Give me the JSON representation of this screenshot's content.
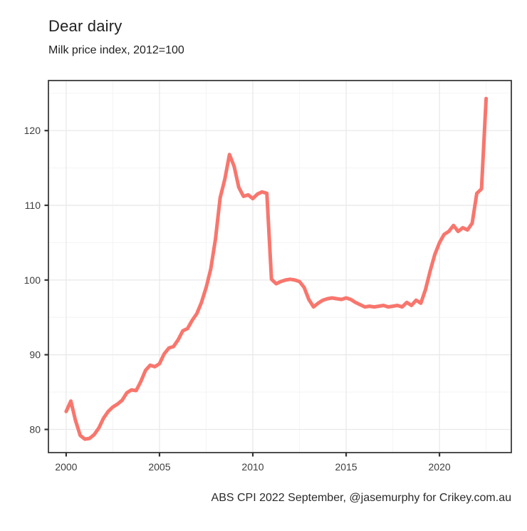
{
  "title": "Dear dairy",
  "subtitle": "Milk price index, 2012=100",
  "caption": "ABS CPI 2022 September, @jasemurphy for Crikey.com.au",
  "colors": {
    "line": "#F8766D",
    "panel_border": "#2f2f2f",
    "grid_major": "#e9e9e9",
    "grid_minor": "#f5f5f5",
    "tick_mark": "#333333",
    "tick_label": "#3d3d3d",
    "background": "#ffffff"
  },
  "chart_data": {
    "type": "line",
    "title": "Dear dairy",
    "subtitle": "Milk price index, 2012=100",
    "caption": "ABS CPI 2022 September, @jasemurphy for Crikey.com.au",
    "series_name": "Milk price index (2012=100)",
    "frequency": "quarterly",
    "xlabel": "",
    "ylabel": "",
    "xlim": [
      1999.05,
      2023.85
    ],
    "ylim": [
      76.9,
      126.7
    ],
    "x_ticks": [
      2000,
      2005,
      2010,
      2015,
      2020
    ],
    "y_ticks": [
      80,
      90,
      100,
      110,
      120
    ],
    "x_minor_ticks": [
      2002.5,
      2007.5,
      2012.5,
      2017.5,
      2022.5
    ],
    "y_minor_ticks": [
      85,
      95,
      105,
      115,
      125
    ],
    "grid": true,
    "legend_position": "none",
    "x": [
      2000.0,
      2000.25,
      2000.5,
      2000.75,
      2001.0,
      2001.25,
      2001.5,
      2001.75,
      2002.0,
      2002.25,
      2002.5,
      2002.75,
      2003.0,
      2003.25,
      2003.5,
      2003.75,
      2004.0,
      2004.25,
      2004.5,
      2004.75,
      2005.0,
      2005.25,
      2005.5,
      2005.75,
      2006.0,
      2006.25,
      2006.5,
      2006.75,
      2007.0,
      2007.25,
      2007.5,
      2007.75,
      2008.0,
      2008.25,
      2008.5,
      2008.75,
      2009.0,
      2009.25,
      2009.5,
      2009.75,
      2010.0,
      2010.25,
      2010.5,
      2010.75,
      2011.0,
      2011.25,
      2011.5,
      2011.75,
      2012.0,
      2012.25,
      2012.5,
      2012.75,
      2013.0,
      2013.25,
      2013.5,
      2013.75,
      2014.0,
      2014.25,
      2014.5,
      2014.75,
      2015.0,
      2015.25,
      2015.5,
      2015.75,
      2016.0,
      2016.25,
      2016.5,
      2016.75,
      2017.0,
      2017.25,
      2017.5,
      2017.75,
      2018.0,
      2018.25,
      2018.5,
      2018.75,
      2019.0,
      2019.25,
      2019.5,
      2019.75,
      2020.0,
      2020.25,
      2020.5,
      2020.75,
      2021.0,
      2021.25,
      2021.5,
      2021.75,
      2022.0,
      2022.25,
      2022.5
    ],
    "values": [
      82.4,
      83.8,
      81.2,
      79.2,
      78.7,
      78.8,
      79.3,
      80.2,
      81.5,
      82.4,
      83.0,
      83.4,
      83.9,
      84.9,
      85.3,
      85.2,
      86.4,
      87.9,
      88.6,
      88.4,
      88.8,
      90.1,
      90.9,
      91.1,
      92.0,
      93.2,
      93.5,
      94.6,
      95.5,
      97.0,
      99.0,
      101.5,
      105.5,
      111.0,
      113.5,
      116.8,
      115.2,
      112.4,
      111.2,
      111.4,
      110.9,
      111.5,
      111.8,
      111.6,
      100.1,
      99.5,
      99.8,
      100.0,
      100.1,
      100.0,
      99.8,
      99.0,
      97.4,
      96.4,
      96.9,
      97.3,
      97.5,
      97.6,
      97.5,
      97.4,
      97.6,
      97.4,
      97.0,
      96.7,
      96.4,
      96.5,
      96.4,
      96.5,
      96.6,
      96.4,
      96.5,
      96.6,
      96.4,
      97.0,
      96.6,
      97.3,
      96.9,
      98.7,
      101.2,
      103.4,
      105.0,
      106.1,
      106.5,
      107.3,
      106.5,
      107.0,
      106.7,
      107.6,
      111.6,
      112.2,
      124.3
    ]
  }
}
